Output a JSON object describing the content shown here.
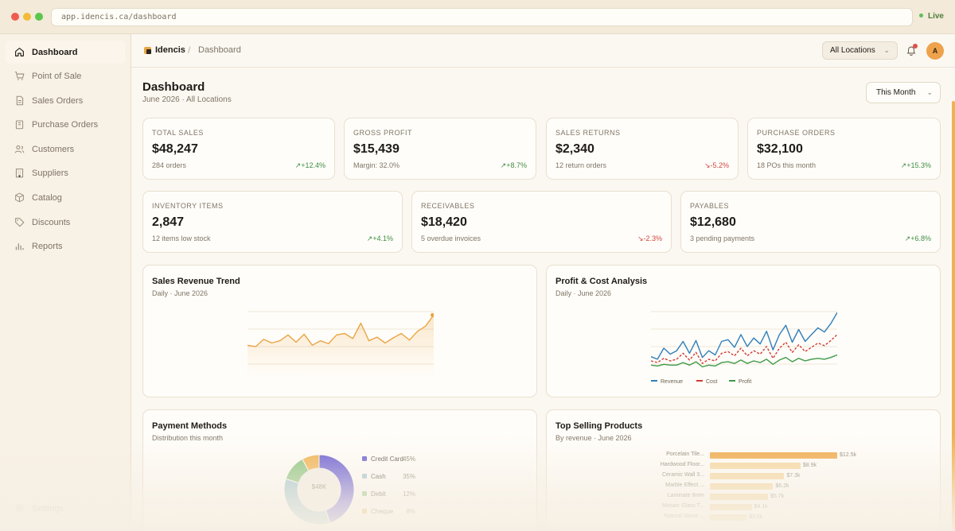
{
  "window": {
    "url": "app.idencis.ca/dashboard",
    "status": "Live"
  },
  "sidebar": {
    "items": [
      {
        "label": "Dashboard",
        "icon": "home-icon"
      },
      {
        "label": "Point of Sale",
        "icon": "cart-icon"
      },
      {
        "label": "Sales Orders",
        "icon": "document-icon"
      },
      {
        "label": "Purchase Orders",
        "icon": "clipboard-icon"
      },
      {
        "label": "Customers",
        "icon": "users-icon"
      },
      {
        "label": "Suppliers",
        "icon": "building-icon"
      },
      {
        "label": "Catalog",
        "icon": "box-icon"
      },
      {
        "label": "Discounts",
        "icon": "tag-icon"
      },
      {
        "label": "Reports",
        "icon": "bar-chart-icon"
      }
    ],
    "settings_label": "Settings"
  },
  "header": {
    "brand": "Idencis",
    "breadcrumb": "Dashboard",
    "location_select": "All Locations",
    "avatar_initial": "A"
  },
  "page": {
    "title": "Dashboard",
    "subtitle": "June 2026 · All Locations",
    "period_select": "This Month"
  },
  "kpis": [
    {
      "label": "TOTAL SALES",
      "value": "$48,247",
      "note": "284 orders",
      "delta": "+12.4%",
      "direction": "up"
    },
    {
      "label": "GROSS PROFIT",
      "value": "$15,439",
      "note": "Margin: 32.0%",
      "delta": "+8.7%",
      "direction": "up"
    },
    {
      "label": "SALES RETURNS",
      "value": "$2,340",
      "note": "12 return orders",
      "delta": "-5.2%",
      "direction": "down"
    },
    {
      "label": "PURCHASE ORDERS",
      "value": "$32,100",
      "note": "18 POs this month",
      "delta": "+15.3%",
      "direction": "up"
    },
    {
      "label": "INVENTORY ITEMS",
      "value": "2,847",
      "note": "12 items low stock",
      "delta": "+4.1%",
      "direction": "up"
    },
    {
      "label": "RECEIVABLES",
      "value": "$18,420",
      "note": "5 overdue invoices",
      "delta": "-2.3%",
      "direction": "down"
    },
    {
      "label": "PAYABLES",
      "value": "$12,680",
      "note": "3 pending payments",
      "delta": "+6.8%",
      "direction": "up"
    }
  ],
  "panels": {
    "revenue": {
      "title": "Sales Revenue Trend",
      "subtitle": "Daily · June 2026"
    },
    "profit": {
      "title": "Profit & Cost Analysis",
      "subtitle": "Daily · June 2026"
    },
    "payments": {
      "title": "Payment Methods",
      "subtitle": "Distribution this month"
    },
    "top_products": {
      "title": "Top Selling Products",
      "subtitle": "By revenue · June 2026"
    }
  },
  "colors": {
    "accent": "#e9a545",
    "revenue_line": "#2f7fba",
    "cost_line": "#d23b34",
    "profit_line": "#3f9a48",
    "up": "#3e8e43",
    "down": "#d2463f"
  },
  "chart_data": [
    {
      "type": "area",
      "x": [
        1,
        2,
        3,
        4,
        5,
        6,
        7,
        8,
        9,
        10,
        11,
        12,
        13,
        14,
        15,
        16,
        17,
        18,
        19,
        20,
        21,
        22,
        23,
        24
      ],
      "series": [
        {
          "values": [
            30,
            28,
            38,
            33,
            36,
            44,
            34,
            45,
            30,
            36,
            32,
            44,
            46,
            39,
            60,
            36,
            41,
            33,
            40,
            46,
            37,
            49,
            56,
            71
          ]
        }
      ],
      "grid": true,
      "ylim": [
        0,
        80
      ]
    },
    {
      "type": "line",
      "x": [
        1,
        2,
        3,
        4,
        5,
        6,
        7,
        8,
        9,
        10,
        11,
        12,
        13,
        14,
        15,
        16,
        17,
        18,
        19,
        20,
        21,
        22,
        23,
        24,
        25,
        26,
        27,
        28,
        29,
        30
      ],
      "series": [
        {
          "name": "Revenue",
          "values": [
            40,
            37,
            50,
            43,
            47,
            58,
            44,
            59,
            39,
            47,
            42,
            58,
            60,
            51,
            66,
            52,
            62,
            55,
            70,
            48,
            66,
            77,
            57,
            72,
            58,
            66,
            74,
            69,
            79,
            92
          ]
        },
        {
          "name": "Cost",
          "values": [
            35,
            33,
            38,
            35,
            37,
            44,
            36,
            45,
            32,
            37,
            35,
            44,
            46,
            41,
            50,
            41,
            47,
            43,
            52,
            38,
            50,
            57,
            45,
            54,
            46,
            51,
            56,
            53,
            59,
            66
          ]
        },
        {
          "name": "Profit",
          "values": [
            30,
            29,
            31,
            30,
            30,
            33,
            30,
            34,
            28,
            30,
            29,
            33,
            34,
            32,
            36,
            32,
            35,
            33,
            37,
            31,
            36,
            39,
            34,
            38,
            35,
            37,
            38,
            37,
            39,
            42
          ]
        }
      ],
      "legend": "bottom",
      "grid": true
    },
    {
      "type": "pie",
      "center_label": "$48K",
      "categories": [
        "Credit Card",
        "Cash",
        "Debit",
        "Cheque"
      ],
      "values": [
        45,
        35,
        12,
        8
      ],
      "labels": [
        "45%",
        "35%",
        "12%",
        "8%"
      ],
      "colors": [
        "#6a5ed4",
        "#9fc4cf",
        "#8cc47e",
        "#f0b24f"
      ]
    },
    {
      "type": "bar",
      "orientation": "horizontal",
      "categories": [
        "Porcelain Tile...",
        "Hardwood Floor...",
        "Ceramic Wall 3...",
        "Marble Effect ...",
        "Laminate 8mm",
        "Mosaic Glass T...",
        "Natural Stone ..."
      ],
      "values": [
        12.5,
        8.9,
        7.3,
        6.2,
        5.7,
        4.1,
        3.6
      ],
      "labels": [
        "$12.5k",
        "$8.9k",
        "$7.3k",
        "$6.2k",
        "$5.7k",
        "$4.1k",
        "$3.6k"
      ],
      "unit": "k"
    }
  ]
}
